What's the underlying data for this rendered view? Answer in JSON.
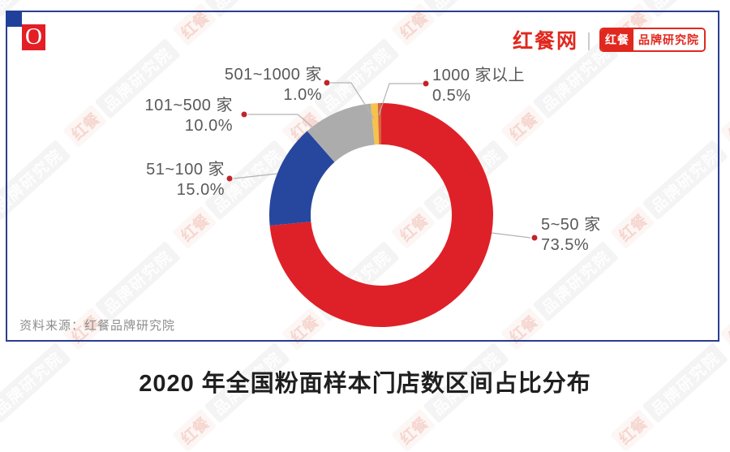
{
  "header": {
    "corner_logo_letter": "O",
    "brand_primary": "红餐网",
    "separator": "|",
    "brand_badge": {
      "left": "红餐",
      "right": "品牌研究院"
    }
  },
  "chart_data": {
    "type": "pie",
    "subtype": "donut",
    "title": "2020 年全国粉面样本门店数区间占比分布",
    "categories": [
      "5~50 家",
      "51~100 家",
      "101~500 家",
      "501~1000 家",
      "1000 家以上"
    ],
    "values": [
      73.5,
      15.0,
      10.0,
      1.0,
      0.5
    ],
    "value_labels": [
      "73.5%",
      "15.0%",
      "10.0%",
      "1.0%",
      "0.5%"
    ],
    "colors": [
      "#DE2128",
      "#27479E",
      "#ACACAC",
      "#F5C34C",
      "#D8643F"
    ],
    "unit": "%",
    "start_angle_deg": 0,
    "direction": "clockwise",
    "legend_position": "callout-labels"
  },
  "source_note": "资料来源：红餐品牌研究院",
  "watermark": {
    "badge": "红餐",
    "text": "品牌研究院"
  },
  "theme_colors": {
    "border_blue": "#2B3D92",
    "corner_square_blue": "#20409A",
    "brand_red": "#E0281E",
    "logo_red": "#E31E25",
    "callout_dot_red": "#C2232A",
    "leader_line_gray": "#B3B3B3",
    "label_text_gray": "#595959",
    "source_text_gray": "#8E8E8E",
    "title_text": "#1F1F1F"
  }
}
